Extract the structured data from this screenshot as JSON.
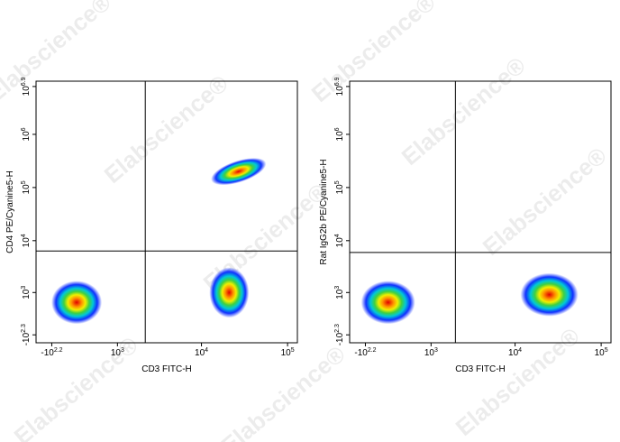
{
  "watermark": "Elabscience®",
  "chart_data": [
    {
      "type": "density",
      "xlabel": "CD3 FITC-H",
      "ylabel": "CD4 PE/Cyanine5-H",
      "x": [
        180,
        21000,
        27000
      ],
      "values": [
        600,
        1000,
        200000
      ],
      "xlim": [
        -400,
        130000
      ],
      "ylim": [
        -400,
        10000000
      ],
      "xticks": [
        {
          "value": -158.5,
          "label": "-10^2.2"
        },
        {
          "value": 1000,
          "label": "10^3"
        },
        {
          "value": 10000,
          "label": "10^4"
        },
        {
          "value": 100000,
          "label": "10^5"
        }
      ],
      "yticks": [
        {
          "value": -199.5,
          "label": "-10^2.3"
        },
        {
          "value": 1000,
          "label": "10^3"
        },
        {
          "value": 10000,
          "label": "10^4"
        },
        {
          "value": 100000,
          "label": "10^5"
        },
        {
          "value": 1000000,
          "label": "10^6"
        },
        {
          "value": 7943282,
          "label": "10^6.9"
        }
      ],
      "gates": {
        "x": 2200,
        "y": 6400
      },
      "scale": "biexponential"
    },
    {
      "type": "density",
      "xlabel": "CD3 FITC-H",
      "ylabel": "Rat IgG2b PE/Cyanine5-H",
      "x": [
        150,
        25000
      ],
      "values": [
        600,
        900
      ],
      "xlim": [
        -400,
        130000
      ],
      "ylim": [
        -400,
        10000000
      ],
      "xticks": [
        {
          "value": -158.5,
          "label": "-10^2.2"
        },
        {
          "value": 1000,
          "label": "10^3"
        },
        {
          "value": 10000,
          "label": "10^4"
        },
        {
          "value": 100000,
          "label": "10^5"
        }
      ],
      "yticks": [
        {
          "value": -199.5,
          "label": "-10^2.3"
        },
        {
          "value": 1000,
          "label": "10^3"
        },
        {
          "value": 10000,
          "label": "10^4"
        },
        {
          "value": 100000,
          "label": "10^5"
        },
        {
          "value": 1000000,
          "label": "10^6"
        },
        {
          "value": 7943282,
          "label": "10^6.9"
        }
      ],
      "gates": {
        "x": 2000,
        "y": 6000
      },
      "scale": "biexponential"
    }
  ]
}
